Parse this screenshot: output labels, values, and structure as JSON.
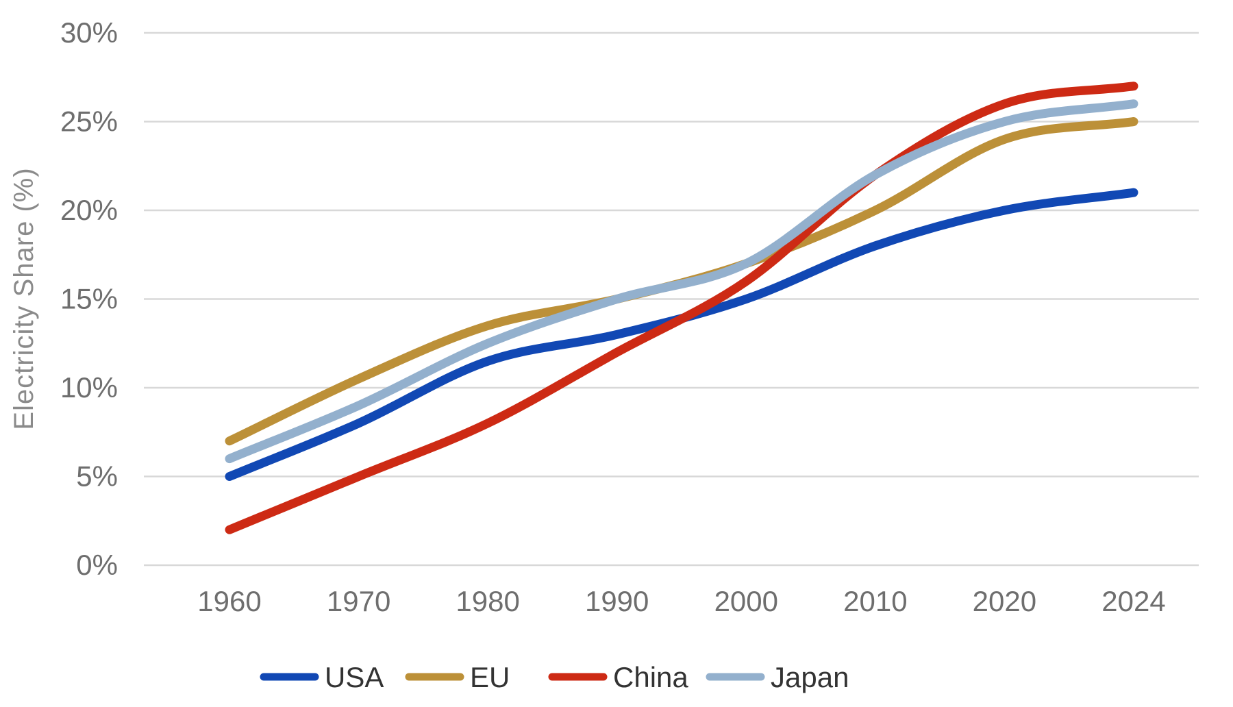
{
  "chart_data": {
    "type": "line",
    "title": "",
    "xlabel": "",
    "ylabel": "Electricity Share (%)",
    "categories": [
      "1960",
      "1970",
      "1980",
      "1990",
      "2000",
      "2010",
      "2020",
      "2024"
    ],
    "series": [
      {
        "name": "USA",
        "color": "#1148b4",
        "values": [
          5,
          8,
          11.5,
          13,
          15,
          18,
          20,
          21
        ]
      },
      {
        "name": "EU",
        "color": "#bc9038",
        "values": [
          7,
          10.5,
          13.5,
          15,
          17,
          20,
          24,
          25
        ]
      },
      {
        "name": "China",
        "color": "#cd2a14",
        "values": [
          2,
          5,
          8,
          12,
          16,
          22,
          26,
          27
        ]
      },
      {
        "name": "Japan",
        "color": "#93b0cd",
        "values": [
          6,
          9,
          12.5,
          15,
          17,
          22,
          25,
          26
        ]
      }
    ],
    "y_ticks": [
      "0%",
      "5%",
      "10%",
      "15%",
      "20%",
      "25%",
      "30%"
    ],
    "ylim": [
      0,
      30
    ],
    "y_tick_step": 5,
    "grid": true,
    "line_style": "smooth",
    "legend_position": "bottom",
    "legend_order": [
      "USA",
      "EU",
      "China",
      "Japan"
    ]
  },
  "colors": {
    "background": "#ffffff",
    "gridline": "#d8d8d8",
    "axis_text": "#6e6e6e",
    "legend_text": "#333333"
  }
}
